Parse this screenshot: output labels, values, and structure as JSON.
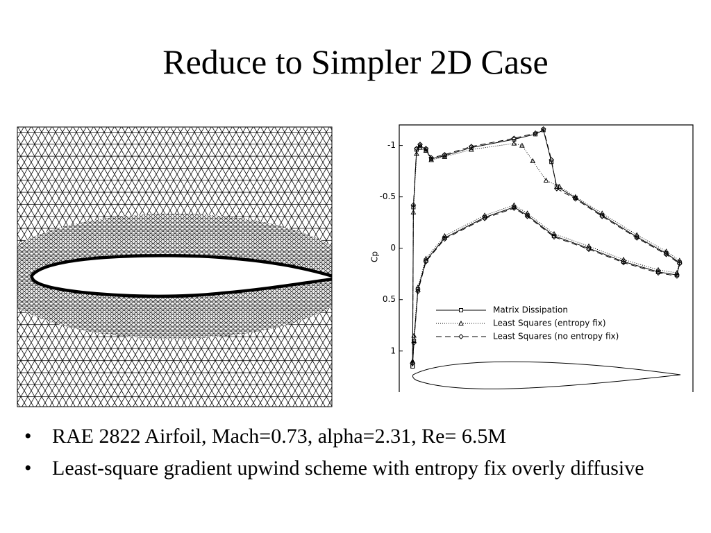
{
  "title": "Reduce to Simpler 2D Case",
  "bullets": [
    "RAE 2822 Airfoil, Mach=0.73, alpha=2.31, Re= 6.5M",
    "Least-square gradient upwind scheme with entropy fix overly diffusive"
  ],
  "chart_data": {
    "type": "line",
    "y_label": "Cp",
    "xlim": [
      -0.05,
      1.05
    ],
    "ylim": [
      1.4,
      -1.2
    ],
    "yticks": [
      -1,
      -0.5,
      0,
      0.5,
      1
    ],
    "series": [
      {
        "name": "Matrix Dissipation",
        "color": "#000000",
        "marker": "square",
        "dash": "solid",
        "x": [
          0,
          0.003,
          0.015,
          0.028,
          0.05,
          0.07,
          0.12,
          0.22,
          0.38,
          0.46,
          0.49,
          0.52,
          0.54,
          0.61,
          0.71,
          0.84,
          0.95,
          1.0,
          0.99,
          0.92,
          0.79,
          0.66,
          0.53,
          0.43,
          0.38,
          0.27,
          0.12,
          0.05,
          0.02,
          0.005,
          0
        ],
        "values": [
          1.15,
          -0.4,
          -0.96,
          -1.0,
          -0.96,
          -0.87,
          -0.9,
          -0.98,
          -1.06,
          -1.11,
          -1.15,
          -0.84,
          -0.6,
          -0.49,
          -0.32,
          -0.11,
          0.05,
          0.14,
          0.26,
          0.23,
          0.13,
          0.0,
          -0.12,
          -0.32,
          -0.4,
          -0.3,
          -0.1,
          0.12,
          0.4,
          0.9,
          1.15
        ]
      },
      {
        "name": "Least Squares (entropy fix)",
        "color": "#000000",
        "marker": "triangle",
        "dash": "dotted",
        "x": [
          0,
          0.003,
          0.015,
          0.028,
          0.05,
          0.07,
          0.12,
          0.22,
          0.38,
          0.41,
          0.45,
          0.5,
          0.55,
          0.61,
          0.71,
          0.84,
          0.95,
          1.0,
          0.99,
          0.92,
          0.79,
          0.66,
          0.53,
          0.43,
          0.38,
          0.27,
          0.12,
          0.05,
          0.02,
          0.005,
          0
        ],
        "values": [
          1.1,
          -0.35,
          -0.92,
          -0.98,
          -0.95,
          -0.86,
          -0.89,
          -0.96,
          -1.02,
          -1.0,
          -0.85,
          -0.66,
          -0.6,
          -0.5,
          -0.34,
          -0.13,
          0.03,
          0.12,
          0.24,
          0.21,
          0.11,
          -0.02,
          -0.14,
          -0.34,
          -0.42,
          -0.32,
          -0.12,
          0.1,
          0.38,
          0.85,
          1.1
        ]
      },
      {
        "name": "Least Squares (no entropy fix)",
        "color": "#000000",
        "marker": "diamond",
        "dash": "dashed",
        "x": [
          0,
          0.003,
          0.015,
          0.028,
          0.05,
          0.07,
          0.12,
          0.22,
          0.38,
          0.46,
          0.49,
          0.52,
          0.54,
          0.61,
          0.71,
          0.84,
          0.95,
          1.0,
          0.99,
          0.92,
          0.79,
          0.66,
          0.53,
          0.43,
          0.38,
          0.27,
          0.12,
          0.05,
          0.02,
          0.005,
          0
        ],
        "values": [
          1.12,
          -0.42,
          -0.97,
          -1.01,
          -0.97,
          -0.88,
          -0.91,
          -0.99,
          -1.07,
          -1.12,
          -1.16,
          -0.86,
          -0.58,
          -0.48,
          -0.31,
          -0.1,
          0.06,
          0.15,
          0.27,
          0.24,
          0.14,
          0.01,
          -0.11,
          -0.31,
          -0.39,
          -0.29,
          -0.09,
          0.13,
          0.42,
          0.92,
          1.12
        ]
      }
    ]
  }
}
